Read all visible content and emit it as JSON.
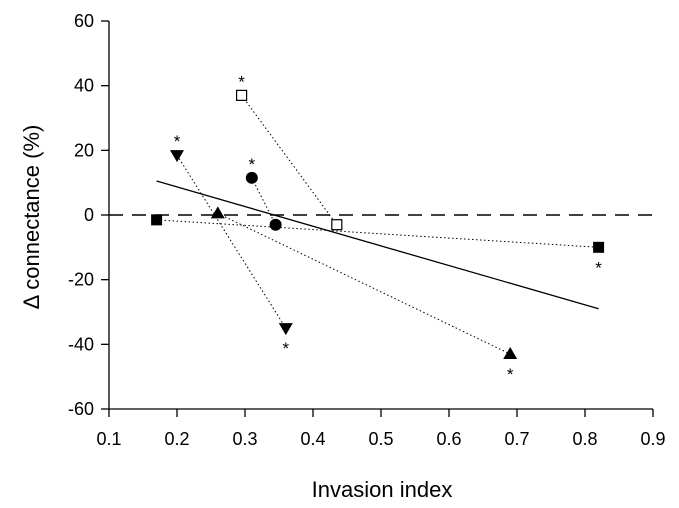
{
  "chart_data": {
    "type": "scatter",
    "title": "",
    "xlabel": "Invasion index",
    "ylabel": "Δ connectance (%)",
    "xlim": [
      0.1,
      0.9
    ],
    "ylim": [
      -60,
      60
    ],
    "xticks": [
      "0.1",
      "0.2",
      "0.3",
      "0.4",
      "0.5",
      "0.6",
      "0.7",
      "0.8",
      "0.9"
    ],
    "yticks": [
      "60",
      "40",
      "20",
      "0",
      "-20",
      "-40",
      "-60"
    ],
    "grid": false,
    "legend": "none",
    "zero_line": {
      "y": 0,
      "style": "dashed"
    },
    "regression_line": {
      "x": [
        0.17,
        0.82
      ],
      "y": [
        10.5,
        -29
      ],
      "style": "solid"
    },
    "series": [
      {
        "marker": "filled-square",
        "points": [
          {
            "x": 0.17,
            "y": -1.5,
            "star": false
          },
          {
            "x": 0.82,
            "y": -10,
            "star": true
          }
        ]
      },
      {
        "marker": "filled-triangle-up",
        "points": [
          {
            "x": 0.26,
            "y": 0.5,
            "star": false
          },
          {
            "x": 0.69,
            "y": -43,
            "star": true
          }
        ]
      },
      {
        "marker": "filled-triangle-down",
        "points": [
          {
            "x": 0.2,
            "y": 18.5,
            "star": true
          },
          {
            "x": 0.36,
            "y": -35,
            "star": true
          }
        ]
      },
      {
        "marker": "filled-circle",
        "points": [
          {
            "x": 0.31,
            "y": 11.5,
            "star": true
          },
          {
            "x": 0.345,
            "y": -3,
            "star": false
          }
        ]
      },
      {
        "marker": "open-square",
        "points": [
          {
            "x": 0.295,
            "y": 37,
            "star": true
          },
          {
            "x": 0.435,
            "y": -3,
            "star": false
          }
        ]
      }
    ],
    "significance_marker": "*"
  }
}
